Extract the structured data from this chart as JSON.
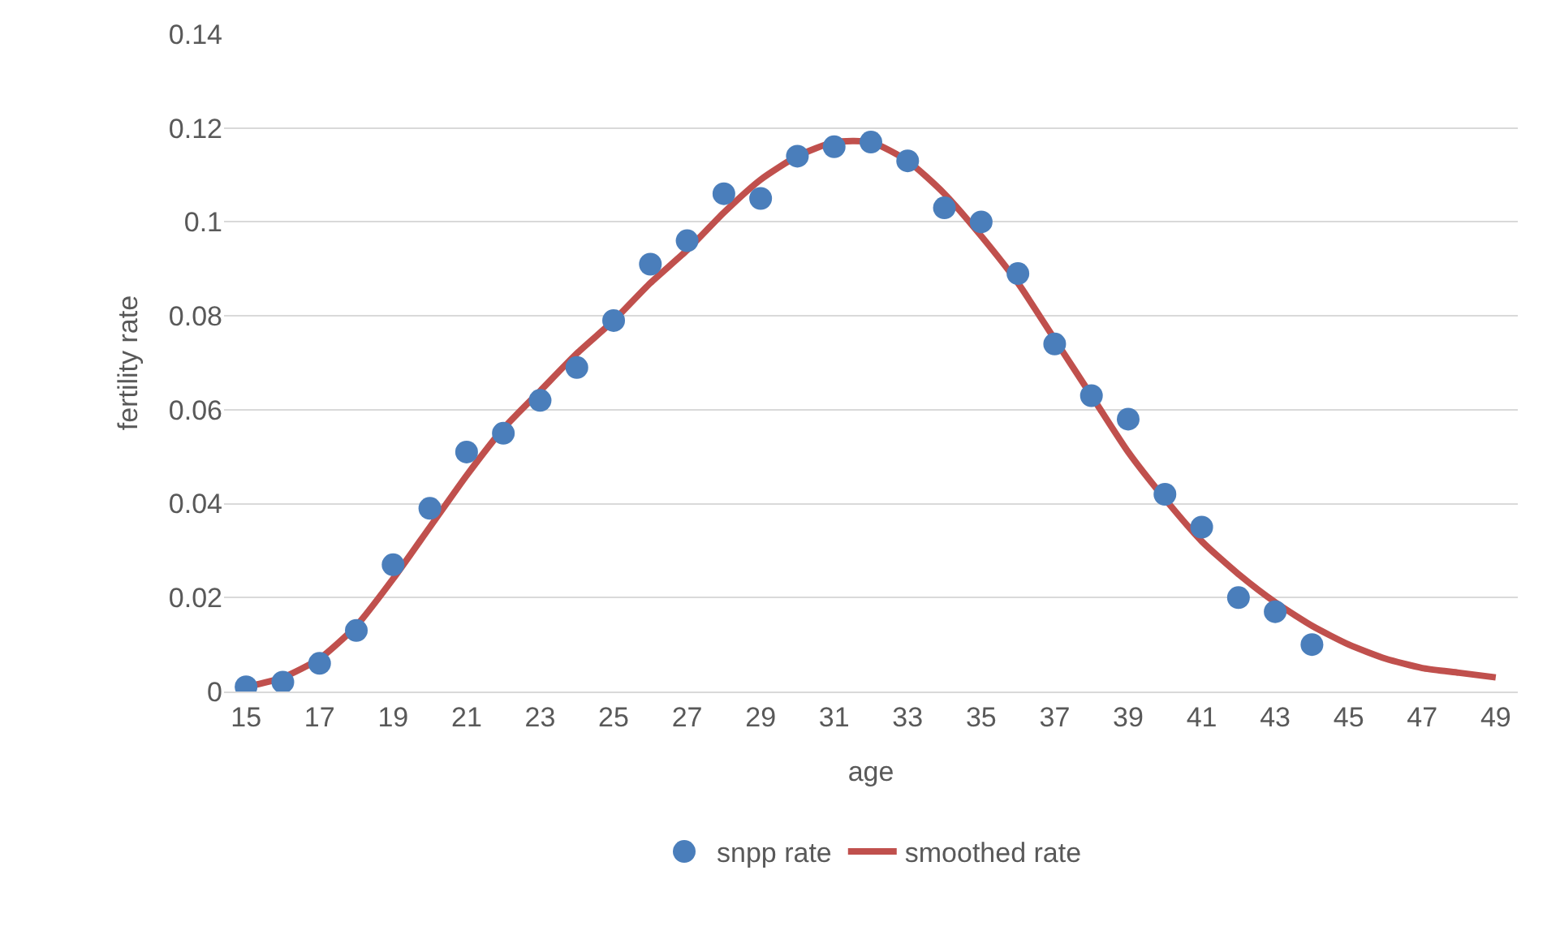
{
  "chart_data": {
    "type": "scatter",
    "xlabel": "age",
    "ylabel": "fertility rate",
    "xlim": [
      14.4,
      49.6
    ],
    "xticks": [
      15,
      17,
      19,
      21,
      23,
      25,
      27,
      29,
      31,
      33,
      35,
      37,
      39,
      41,
      43,
      45,
      47,
      49
    ],
    "ylim": [
      0,
      0.14
    ],
    "yticks": [
      0,
      0.02,
      0.04,
      0.06,
      0.08,
      0.1,
      0.12,
      0.14
    ],
    "grid": "y",
    "legend": "bottom",
    "series": [
      {
        "name": "snpp rate",
        "marker": "circle",
        "color": "#4a7ebb",
        "x": [
          15,
          16,
          17,
          18,
          19,
          20,
          21,
          22,
          23,
          24,
          25,
          26,
          27,
          28,
          29,
          30,
          31,
          32,
          33,
          34,
          35,
          36,
          37,
          38,
          39,
          40,
          41,
          42,
          43,
          44
        ],
        "values": [
          0.001,
          0.002,
          0.006,
          0.013,
          0.027,
          0.039,
          0.051,
          0.055,
          0.062,
          0.069,
          0.079,
          0.091,
          0.096,
          0.106,
          0.105,
          0.114,
          0.116,
          0.117,
          0.113,
          0.103,
          0.1,
          0.089,
          0.074,
          0.063,
          0.058,
          0.042,
          0.035,
          0.02,
          0.017,
          0.01
        ]
      },
      {
        "name": "smoothed rate",
        "type": "line",
        "marker": "none",
        "line_style": "solid",
        "color": "#c0504d",
        "x": [
          15,
          16,
          17,
          18,
          19,
          20,
          21,
          22,
          23,
          24,
          25,
          26,
          27,
          28,
          29,
          30,
          31,
          32,
          33,
          34,
          35,
          36,
          37,
          38,
          39,
          40,
          41,
          42,
          43,
          44,
          45,
          46,
          47,
          48,
          49
        ],
        "values": [
          0.001,
          0.003,
          0.007,
          0.014,
          0.024,
          0.035,
          0.046,
          0.056,
          0.064,
          0.072,
          0.079,
          0.087,
          0.094,
          0.102,
          0.109,
          0.114,
          0.117,
          0.117,
          0.113,
          0.106,
          0.097,
          0.087,
          0.075,
          0.063,
          0.051,
          0.041,
          0.032,
          0.025,
          0.019,
          0.014,
          0.01,
          0.007,
          0.005,
          0.004,
          0.003
        ]
      }
    ]
  }
}
